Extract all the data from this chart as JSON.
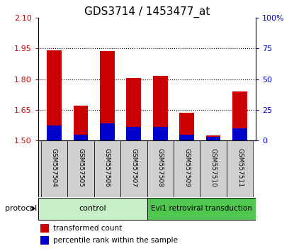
{
  "title": "GDS3714 / 1453477_at",
  "samples": [
    "GSM557504",
    "GSM557505",
    "GSM557506",
    "GSM557507",
    "GSM557508",
    "GSM557509",
    "GSM557510",
    "GSM557511"
  ],
  "red_values": [
    1.94,
    1.67,
    1.935,
    1.805,
    1.815,
    1.635,
    1.525,
    1.74
  ],
  "blue_pct": [
    12,
    5,
    14,
    11,
    11,
    5,
    3,
    10
  ],
  "y_min": 1.5,
  "y_max": 2.1,
  "y_ticks_left": [
    1.5,
    1.65,
    1.8,
    1.95,
    2.1
  ],
  "y_ticks_right_labels": [
    "0",
    "25",
    "50",
    "75",
    "100%"
  ],
  "control_label": "control",
  "treatment_label": "Evi1 retroviral transduction",
  "protocol_label": "protocol",
  "legend_red": "transformed count",
  "legend_blue": "percentile rank within the sample",
  "control_color": "#c8f0c8",
  "treatment_color": "#50c850",
  "bar_bg_color": "#d0d0d0",
  "bar_width": 0.55,
  "red_color": "#cc0000",
  "blue_color": "#0000cc",
  "title_fontsize": 11,
  "tick_fontsize": 8,
  "n_control": 4,
  "n_treatment": 4
}
